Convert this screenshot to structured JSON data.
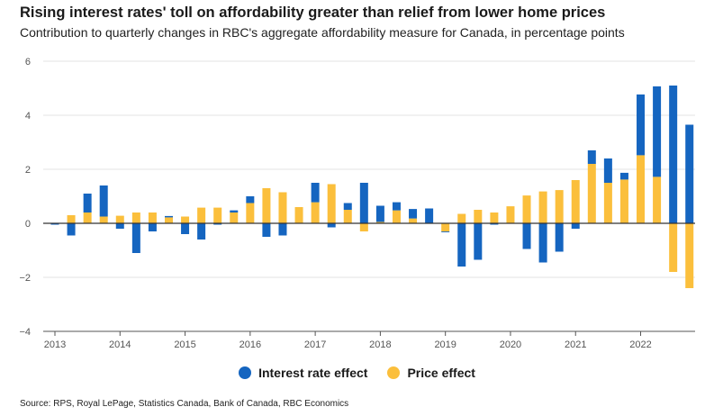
{
  "chart_data": {
    "type": "bar",
    "stacked": true,
    "title": "Rising interest rates' toll on affordability greater than relief from lower home prices",
    "subtitle": "Contribution to quarterly changes in RBC's aggregate affordability measure for Canada, in percentage points",
    "source": "Source: RPS, Royal LePage, Statistics Canada, Bank of Canada, RBC Economics",
    "ylim": [
      -4,
      6
    ],
    "yticks": [
      "−4",
      "−2",
      "0",
      "2",
      "4",
      "6"
    ],
    "yvalues": [
      -4,
      -2,
      0,
      2,
      4,
      6
    ],
    "xtick_labels": [
      "2013",
      "2014",
      "2015",
      "2016",
      "2017",
      "2018",
      "2019",
      "2020",
      "2021",
      "2022"
    ],
    "series": [
      {
        "name": "Interest rate effect",
        "color": "#1565c0",
        "values": [
          -0.05,
          -0.45,
          0.7,
          1.15,
          -0.2,
          -1.1,
          -0.3,
          0.05,
          -0.4,
          -0.6,
          -0.05,
          0.08,
          0.25,
          -0.5,
          -0.45,
          0.0,
          0.72,
          -0.15,
          0.25,
          1.5,
          0.6,
          0.3,
          0.35,
          0.55,
          -0.03,
          -1.6,
          -1.35,
          -0.05,
          0.0,
          -0.95,
          -1.45,
          -1.05,
          -0.2,
          0.5,
          0.9,
          0.25,
          2.25,
          3.35,
          5.1,
          3.65
        ]
      },
      {
        "name": "Price effect",
        "color": "#fbbf3c",
        "values": [
          0.0,
          0.3,
          0.4,
          0.25,
          0.28,
          0.4,
          0.4,
          0.22,
          0.25,
          0.58,
          0.58,
          0.4,
          0.75,
          1.3,
          1.15,
          0.6,
          0.78,
          1.45,
          0.5,
          -0.3,
          0.05,
          0.48,
          0.18,
          0.0,
          -0.3,
          0.35,
          0.5,
          0.4,
          0.63,
          1.03,
          1.18,
          1.23,
          1.6,
          2.2,
          1.5,
          1.62,
          2.52,
          1.72,
          -1.8,
          -2.4
        ]
      }
    ]
  }
}
